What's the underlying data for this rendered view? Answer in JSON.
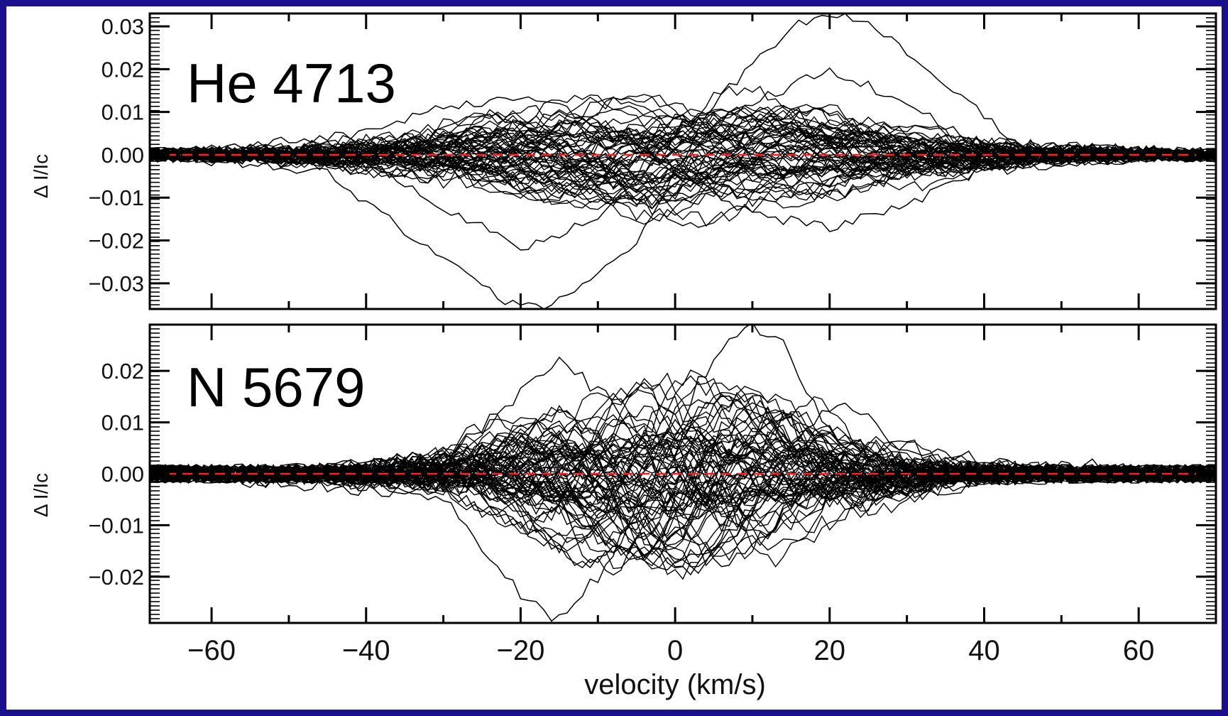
{
  "figure": {
    "xlabel": "velocity (km/s)",
    "x_tick_labels": [
      "−60",
      "−40",
      "−20",
      "0",
      "20",
      "40",
      "60"
    ],
    "line_color": "#000000",
    "zero_line_color": "#ff2020",
    "frame_color": "#1a0f8c"
  },
  "chart_data": [
    {
      "type": "line",
      "title": "He 4713",
      "ylabel": "Δ I/Ic",
      "xlim": [
        -68,
        70
      ],
      "ylim": [
        -0.036,
        0.033
      ],
      "y_ticks": [
        0.03,
        0.02,
        0.01,
        0.0,
        -0.01,
        -0.02,
        -0.03
      ],
      "y_tick_labels": [
        "0.03",
        "0.02",
        "0.01",
        "0.00",
        "−0.01",
        "−0.02",
        "−0.03"
      ],
      "x_ticks": [
        -60,
        -40,
        -20,
        0,
        20,
        40,
        60
      ],
      "n_profiles": 60,
      "line_center": 0,
      "envelope_halfwidth": 42,
      "amplitude_range": [
        0.004,
        0.016
      ],
      "noise_level": 0.0016,
      "highlighted_profiles": [
        {
          "x": [
            -68,
            -45,
            -35,
            -25,
            -20,
            -15,
            -5,
            5,
            15,
            20,
            25,
            35,
            45,
            70
          ],
          "y": [
            0.0,
            -0.004,
            -0.018,
            -0.031,
            -0.036,
            -0.034,
            -0.02,
            0.012,
            0.03,
            0.033,
            0.031,
            0.016,
            0.002,
            0.0
          ]
        },
        {
          "x": [
            -68,
            -40,
            -30,
            -20,
            -10,
            0,
            10,
            20,
            30,
            40,
            70
          ],
          "y": [
            0.0,
            -0.002,
            -0.012,
            -0.022,
            -0.015,
            0.002,
            0.012,
            0.02,
            0.012,
            0.002,
            0.0
          ]
        },
        {
          "x": [
            -68,
            -40,
            -30,
            -20,
            -10,
            0,
            10,
            20,
            30,
            40,
            70
          ],
          "y": [
            0.0,
            0.005,
            0.011,
            0.014,
            0.008,
            -0.004,
            -0.014,
            -0.017,
            -0.012,
            -0.003,
            0.0
          ]
        }
      ],
      "zero_line": 0.0
    },
    {
      "type": "line",
      "title": "N 5679",
      "ylabel": "Δ I/Ic",
      "xlabel": "velocity (km/s)",
      "xlim": [
        -68,
        70
      ],
      "ylim": [
        -0.029,
        0.029
      ],
      "y_ticks": [
        0.02,
        0.01,
        0.0,
        -0.01,
        -0.02
      ],
      "y_tick_labels": [
        "0.02",
        "0.01",
        "0.00",
        "−0.01",
        "−0.02"
      ],
      "x_ticks": [
        -60,
        -40,
        -20,
        0,
        20,
        40,
        60
      ],
      "x_tick_labels": [
        "−60",
        "−40",
        "−20",
        "0",
        "20",
        "40",
        "60"
      ],
      "n_profiles": 70,
      "line_center": 0,
      "envelope_halfwidth": 30,
      "amplitude_range": [
        0.005,
        0.02
      ],
      "noise_level": 0.0018,
      "highlighted_profiles": [
        {
          "x": [
            -68,
            -30,
            -22,
            -16,
            -10,
            -2,
            3,
            9,
            14,
            20,
            26,
            70
          ],
          "y": [
            0.0,
            -0.004,
            -0.02,
            -0.029,
            -0.02,
            0.0,
            0.018,
            0.029,
            0.025,
            0.008,
            0.0,
            0.0
          ]
        },
        {
          "x": [
            -68,
            -30,
            -22,
            -15,
            -8,
            0,
            6,
            12,
            20,
            30,
            70
          ],
          "y": [
            0.0,
            0.003,
            0.013,
            0.022,
            0.014,
            -0.005,
            -0.018,
            -0.012,
            0.004,
            0.001,
            0.0
          ]
        },
        {
          "x": [
            -68,
            -30,
            -20,
            -12,
            -4,
            2,
            8,
            15,
            22,
            30,
            70
          ],
          "y": [
            0.0,
            -0.003,
            -0.01,
            -0.018,
            -0.012,
            -0.02,
            -0.006,
            0.006,
            0.015,
            0.004,
            0.0
          ]
        }
      ],
      "zero_line": 0.0
    }
  ]
}
